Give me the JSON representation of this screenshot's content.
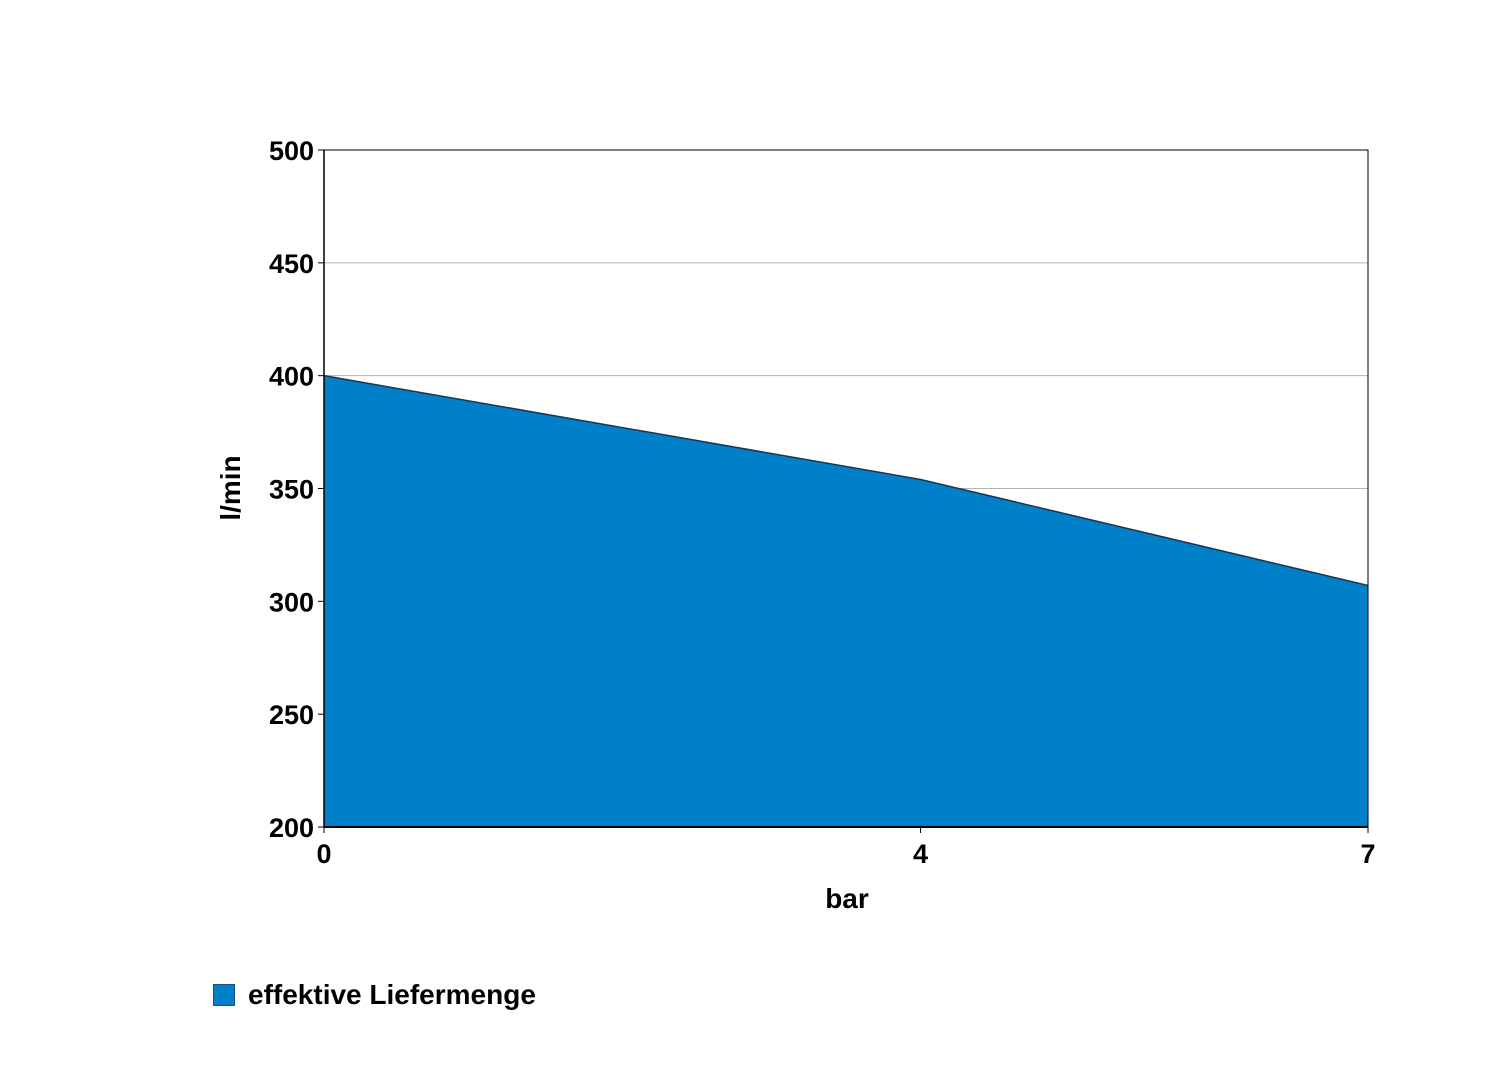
{
  "chart_data": {
    "type": "area",
    "x": [
      0,
      4,
      7
    ],
    "series": [
      {
        "name": "effektive Liefermenge",
        "values": [
          400,
          354,
          307
        ],
        "color": "#0080c8"
      }
    ],
    "xlabel": "bar",
    "ylabel": "l/min",
    "xlim": [
      0,
      7
    ],
    "ylim": [
      200,
      500
    ],
    "x_ticks": [
      0,
      4,
      7
    ],
    "y_ticks": [
      200,
      250,
      300,
      350,
      400,
      450,
      500
    ],
    "grid": "horizontal",
    "legend_position": "bottom-left"
  }
}
